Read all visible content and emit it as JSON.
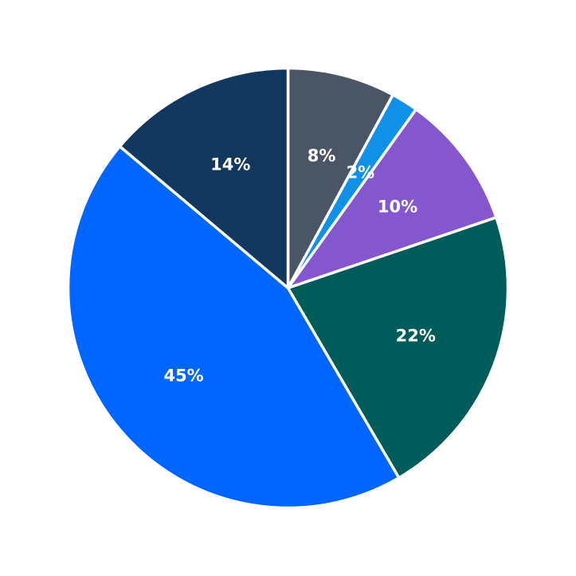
{
  "chart_data": {
    "type": "pie",
    "title": "",
    "values": [
      8,
      2,
      10,
      22,
      45,
      14
    ],
    "labels": [
      "8%",
      "2%",
      "10%",
      "22%",
      "45%",
      "14%"
    ],
    "colors": [
      "#4a5565",
      "#1190e8",
      "#8457cf",
      "#005b5b",
      "#0066ff",
      "#12385f"
    ],
    "start": "12 o'clock",
    "direction": "clockwise",
    "legend": "none"
  }
}
